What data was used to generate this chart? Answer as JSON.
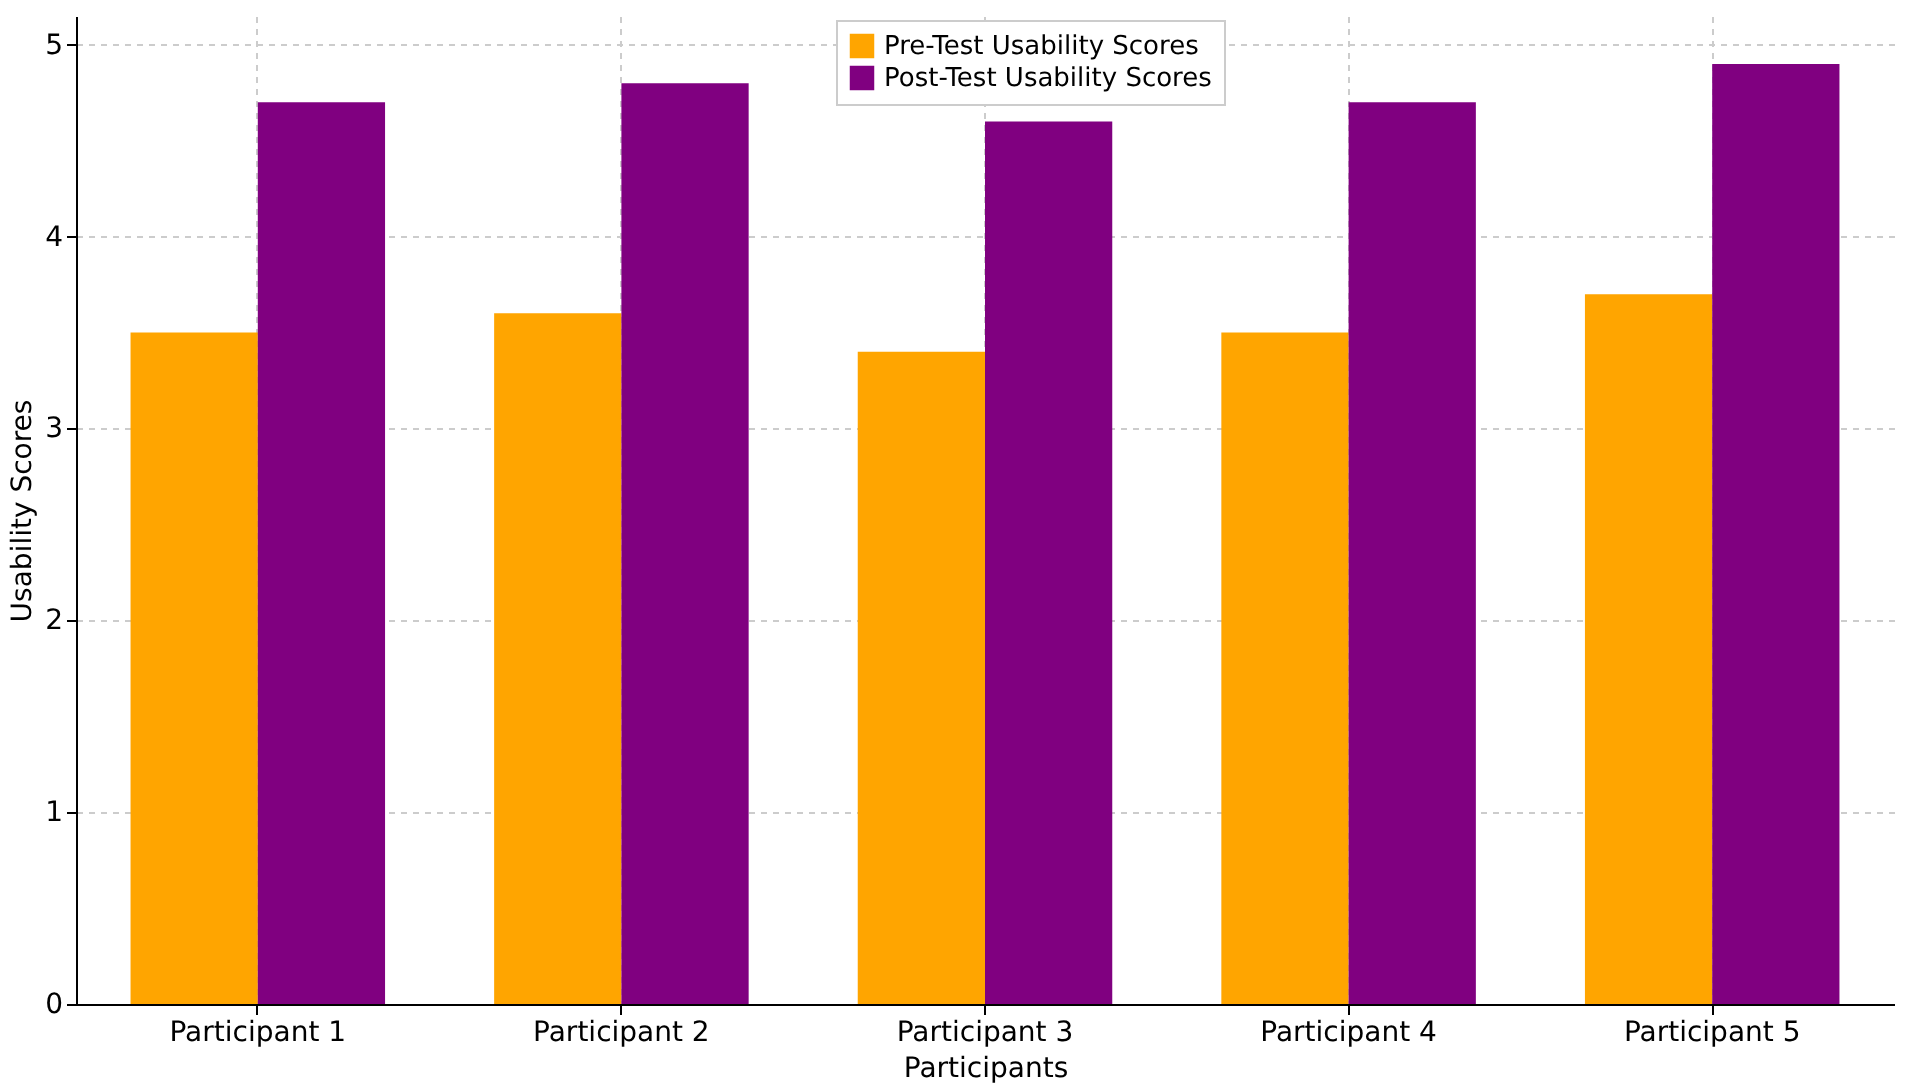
{
  "chart_data": {
    "type": "bar",
    "xlabel": "Participants",
    "ylabel": "Usability Scores",
    "categories": [
      "Participant 1",
      "Participant 2",
      "Participant 3",
      "Participant 4",
      "Participant 5"
    ],
    "series": [
      {
        "name": "Pre-Test Usability Scores",
        "color": "#ffa500",
        "values": [
          3.5,
          3.6,
          3.4,
          3.5,
          3.7
        ]
      },
      {
        "name": "Post-Test Usability Scores",
        "color": "#800080",
        "values": [
          4.7,
          4.8,
          4.6,
          4.7,
          4.9
        ]
      }
    ],
    "ylim": [
      0,
      5.15
    ],
    "yticks": [
      0,
      1,
      2,
      3,
      4,
      5
    ],
    "grid": true,
    "legend": "top"
  }
}
